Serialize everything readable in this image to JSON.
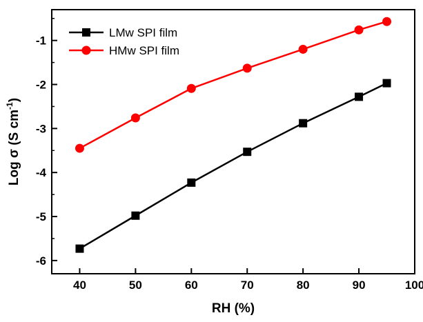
{
  "chart_data": {
    "type": "line",
    "title": "",
    "xlabel": "RH (%)",
    "ylabel_main": "Log σ (S cm",
    "ylabel_sup": "-1",
    "ylabel_close": ")",
    "xlim": [
      35,
      100
    ],
    "ylim": [
      -6.3,
      -0.3
    ],
    "xticks": [
      40,
      50,
      60,
      70,
      80,
      90,
      100
    ],
    "yticks": [
      -6,
      -5,
      -4,
      -3,
      -2,
      -1
    ],
    "grid": false,
    "legend_position": "top-left",
    "x": [
      40,
      50,
      60,
      70,
      80,
      90,
      95
    ],
    "series": [
      {
        "name": "LMw SPI film",
        "color": "#000000",
        "marker": "square",
        "values": [
          -5.73,
          -4.98,
          -4.23,
          -3.53,
          -2.88,
          -2.28,
          -1.97
        ]
      },
      {
        "name": "HMw SPI film",
        "color": "#ff0000",
        "marker": "circle",
        "values": [
          -3.45,
          -2.76,
          -2.09,
          -1.63,
          -1.2,
          -0.76,
          -0.57
        ]
      }
    ]
  }
}
